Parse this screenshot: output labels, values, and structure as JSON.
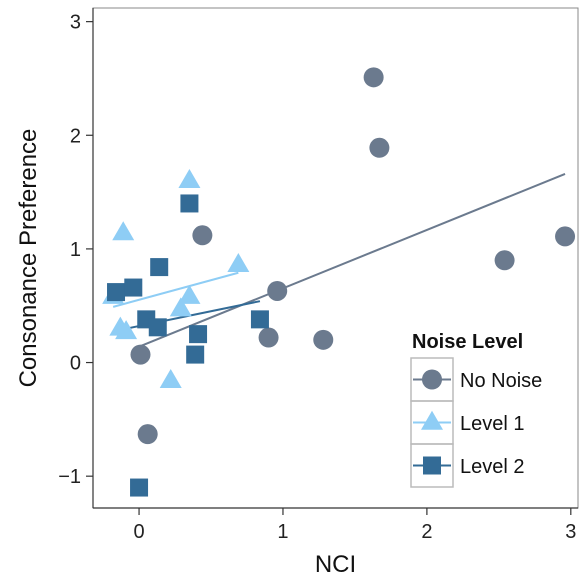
{
  "chart_data": {
    "type": "scatter",
    "title": "",
    "xlabel": "NCI",
    "ylabel": "Consonance Preference",
    "xlim": [
      -0.32,
      3.05
    ],
    "ylim": [
      -1.28,
      3.12
    ],
    "xticks": [
      0,
      1,
      2,
      3
    ],
    "yticks": [
      -1,
      0,
      1,
      2,
      3
    ],
    "xtick_labels": [
      "0",
      "1",
      "2",
      "3"
    ],
    "ytick_labels": [
      "−1",
      "0",
      "1",
      "2",
      "3"
    ],
    "grid": false,
    "legend": {
      "title": "Noise Level",
      "position": "bottom-right"
    },
    "series": [
      {
        "name": "No Noise",
        "marker": "circle",
        "color": "#6b7a8e",
        "points": [
          [
            0.01,
            0.07
          ],
          [
            0.06,
            -0.63
          ],
          [
            0.44,
            1.12
          ],
          [
            0.9,
            0.22
          ],
          [
            0.96,
            0.63
          ],
          [
            1.28,
            0.2
          ],
          [
            1.63,
            2.51
          ],
          [
            1.67,
            1.89
          ],
          [
            2.54,
            0.9
          ],
          [
            2.96,
            1.11
          ]
        ],
        "fit_line": [
          [
            0.0,
            0.14
          ],
          [
            2.96,
            1.66
          ]
        ]
      },
      {
        "name": "Level 1",
        "marker": "triangle",
        "color": "#8ecdf5",
        "points": [
          [
            -0.18,
            0.58
          ],
          [
            -0.11,
            1.14
          ],
          [
            -0.13,
            0.3
          ],
          [
            -0.09,
            0.27
          ],
          [
            0.22,
            -0.16
          ],
          [
            0.29,
            0.47
          ],
          [
            0.35,
            0.58
          ],
          [
            0.35,
            1.6
          ],
          [
            0.69,
            0.86
          ]
        ],
        "fit_line": [
          [
            -0.18,
            0.49
          ],
          [
            0.69,
            0.79
          ]
        ]
      },
      {
        "name": "Level 2",
        "marker": "square",
        "color": "#336b96",
        "points": [
          [
            -0.16,
            0.62
          ],
          [
            -0.04,
            0.66
          ],
          [
            0.0,
            -1.1
          ],
          [
            0.05,
            0.38
          ],
          [
            0.13,
            0.31
          ],
          [
            0.14,
            0.84
          ],
          [
            0.35,
            1.4
          ],
          [
            0.39,
            0.07
          ],
          [
            0.41,
            0.25
          ],
          [
            0.84,
            0.38
          ]
        ],
        "fit_line": [
          [
            -0.16,
            0.28
          ],
          [
            0.84,
            0.54
          ]
        ]
      }
    ]
  }
}
